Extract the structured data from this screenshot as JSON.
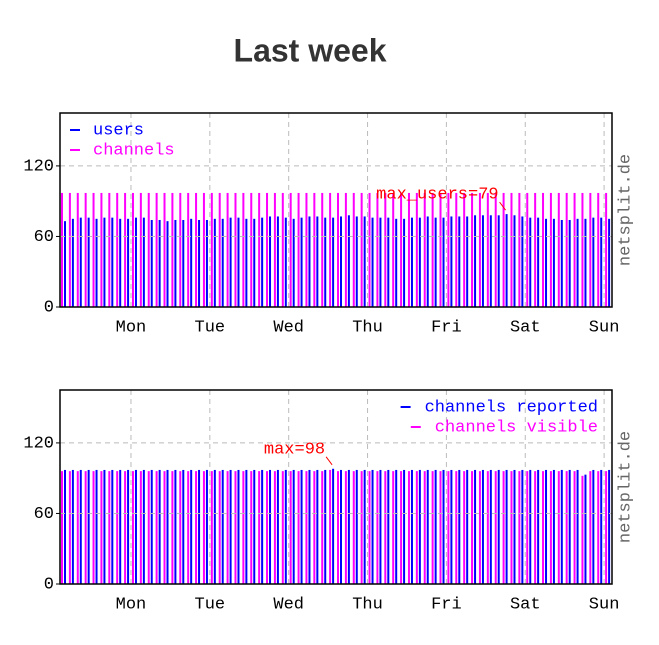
{
  "title": "Last week",
  "chart_data": [
    {
      "type": "bar",
      "legend": "upper left",
      "watermark": "netsplit.de",
      "annotation": "max_users=79",
      "annotation_color": "#ff0000",
      "categories": [
        null,
        null,
        null,
        null,
        null,
        null,
        null,
        null,
        null,
        "Mon",
        null,
        null,
        null,
        null,
        null,
        null,
        null,
        null,
        null,
        "Tue",
        null,
        null,
        null,
        null,
        null,
        null,
        null,
        null,
        null,
        "Wed",
        null,
        null,
        null,
        null,
        null,
        null,
        null,
        null,
        null,
        "Thu",
        null,
        null,
        null,
        null,
        null,
        null,
        null,
        null,
        null,
        "Fri",
        null,
        null,
        null,
        null,
        null,
        null,
        null,
        null,
        null,
        "Sat",
        null,
        null,
        null,
        null,
        null,
        null,
        null,
        null,
        null,
        "Sun"
      ],
      "series": [
        {
          "name": "users",
          "color": "#0000ff",
          "values": [
            73,
            75,
            76,
            76,
            75,
            76,
            76,
            75,
            75,
            76,
            76,
            74,
            74,
            73,
            74,
            74,
            75,
            74,
            74,
            75,
            75,
            76,
            76,
            75,
            75,
            76,
            77,
            77,
            76,
            75,
            76,
            77,
            77,
            76,
            76,
            77,
            78,
            77,
            77,
            76,
            76,
            76,
            75,
            75,
            76,
            76,
            77,
            76,
            76,
            77,
            77,
            77,
            78,
            78,
            78,
            78,
            79,
            78,
            77,
            76,
            76,
            75,
            75,
            74,
            74,
            75,
            75,
            76,
            76,
            75
          ]
        },
        {
          "name": "channels",
          "color": "#ff00ff",
          "values": [
            97,
            97,
            97,
            97,
            97,
            97,
            97,
            97,
            97,
            97,
            97,
            97,
            97,
            97,
            97,
            97,
            97,
            97,
            97,
            97,
            97,
            97,
            97,
            97,
            97,
            97,
            97,
            97,
            97,
            97,
            97,
            97,
            97,
            97,
            97,
            97,
            97,
            97,
            97,
            97,
            97,
            97,
            97,
            97,
            97,
            97,
            97,
            97,
            97,
            97,
            97,
            97,
            97,
            97,
            97,
            97,
            97,
            97,
            97,
            97,
            97,
            97,
            97,
            97,
            97,
            97,
            97,
            97,
            97,
            97
          ]
        }
      ],
      "ylim": [
        0,
        165
      ],
      "yticks": [
        0,
        60,
        120
      ],
      "grid": true
    },
    {
      "type": "bar",
      "legend": "upper right",
      "watermark": "netsplit.de",
      "annotation": "max=98",
      "annotation_color": "#ff0000",
      "categories": [
        null,
        null,
        null,
        null,
        null,
        null,
        null,
        null,
        null,
        "Mon",
        null,
        null,
        null,
        null,
        null,
        null,
        null,
        null,
        null,
        "Tue",
        null,
        null,
        null,
        null,
        null,
        null,
        null,
        null,
        null,
        "Wed",
        null,
        null,
        null,
        null,
        null,
        null,
        null,
        null,
        null,
        "Thu",
        null,
        null,
        null,
        null,
        null,
        null,
        null,
        null,
        null,
        "Fri",
        null,
        null,
        null,
        null,
        null,
        null,
        null,
        null,
        null,
        "Sat",
        null,
        null,
        null,
        null,
        null,
        null,
        null,
        null,
        null,
        "Sun"
      ],
      "series": [
        {
          "name": "channels reported",
          "color": "#0000ff",
          "values": [
            97,
            97,
            97,
            97,
            97,
            97,
            97,
            97,
            97,
            97,
            97,
            97,
            97,
            97,
            97,
            97,
            97,
            97,
            97,
            97,
            97,
            97,
            97,
            97,
            97,
            97,
            97,
            97,
            97,
            97,
            97,
            97,
            97,
            97,
            98,
            97,
            97,
            97,
            97,
            97,
            97,
            97,
            97,
            97,
            97,
            97,
            97,
            97,
            97,
            97,
            97,
            97,
            97,
            97,
            97,
            97,
            97,
            97,
            97,
            97,
            97,
            97,
            97,
            97,
            97,
            97,
            93,
            97,
            97,
            97
          ]
        },
        {
          "name": "channels visible",
          "color": "#ff00ff",
          "values": [
            96,
            96,
            96,
            96,
            96,
            96,
            96,
            96,
            96,
            96,
            96,
            96,
            96,
            96,
            96,
            96,
            96,
            96,
            96,
            96,
            96,
            96,
            96,
            96,
            96,
            96,
            96,
            96,
            96,
            96,
            96,
            96,
            96,
            96,
            97,
            96,
            96,
            96,
            96,
            96,
            96,
            96,
            96,
            96,
            96,
            96,
            96,
            96,
            96,
            96,
            96,
            96,
            96,
            96,
            96,
            96,
            96,
            96,
            96,
            96,
            96,
            96,
            96,
            96,
            96,
            96,
            92,
            96,
            96,
            96
          ]
        }
      ],
      "ylim": [
        0,
        165
      ],
      "yticks": [
        0,
        60,
        120
      ],
      "grid": true
    }
  ]
}
